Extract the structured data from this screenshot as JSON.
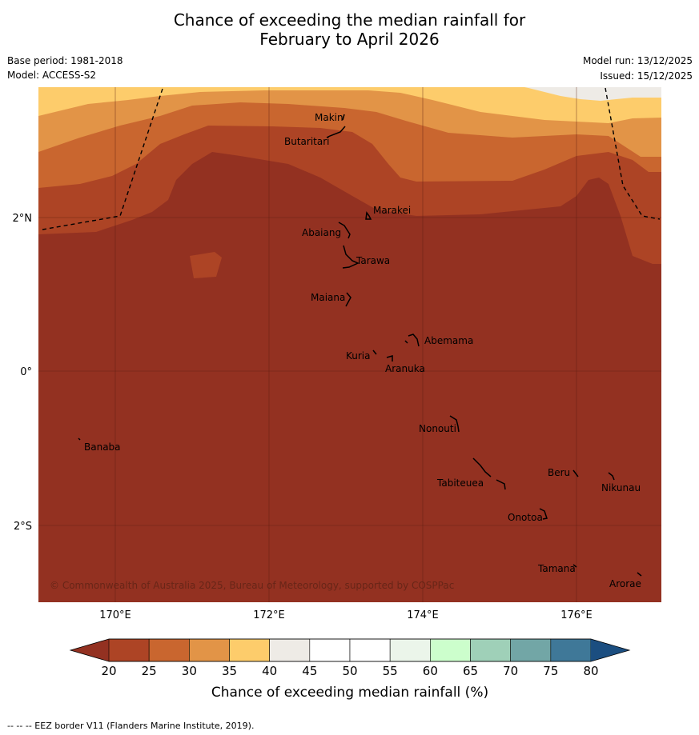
{
  "header": {
    "title_line1": "Chance of exceeding the median rainfall for",
    "title_line2": "February to April 2026",
    "base_period": "Base period: 1981-2018",
    "model": "Model: ACCESS-S2",
    "model_run": "Model run: 13/12/2025",
    "issued": "Issued: 15/12/2025"
  },
  "map": {
    "lat_labels": [
      "2°N",
      "0°",
      "2°S"
    ],
    "lon_labels": [
      "170°E",
      "172°E",
      "174°E",
      "176°E"
    ],
    "places": [
      {
        "name": "Makin",
        "id": "makin"
      },
      {
        "name": "Butaritari",
        "id": "butaritari"
      },
      {
        "name": "Marakei",
        "id": "marakei"
      },
      {
        "name": "Abaiang",
        "id": "abaiang"
      },
      {
        "name": "Tarawa",
        "id": "tarawa"
      },
      {
        "name": "Maiana",
        "id": "maiana"
      },
      {
        "name": "Abemama",
        "id": "abemama"
      },
      {
        "name": "Kuria",
        "id": "kuria"
      },
      {
        "name": "Aranuka",
        "id": "aranuka"
      },
      {
        "name": "Nonouti",
        "id": "nonouti"
      },
      {
        "name": "Banaba",
        "id": "banaba"
      },
      {
        "name": "Beru",
        "id": "beru"
      },
      {
        "name": "Nikunau",
        "id": "nikunau"
      },
      {
        "name": "Tabiteuea",
        "id": "tabiteuea"
      },
      {
        "name": "Onotoa",
        "id": "onotoa"
      },
      {
        "name": "Tamana",
        "id": "tamana"
      },
      {
        "name": "Arorae",
        "id": "arorae"
      }
    ],
    "copyright": "© Commonwealth of Australia 2025, Bureau of Meteorology, supported by COSPPac"
  },
  "legend": {
    "ticks": [
      "20",
      "25",
      "30",
      "35",
      "40",
      "45",
      "50",
      "55",
      "60",
      "65",
      "70",
      "75",
      "80"
    ],
    "colors": [
      "#ad4425",
      "#c9662f",
      "#e29447",
      "#fdcc6b",
      "#eeebe6",
      "#ffffff",
      "#ffffff",
      "#ebf5ea",
      "#ccfecc",
      "#9fd0b8",
      "#72a6a6",
      "#3f7898"
    ],
    "low_color": "#933121",
    "high_color": "#1b4e80",
    "label": "Chance of exceeding median rainfall (%)"
  },
  "footnote": "--  --  -- EEZ border V11 (Flanders Marine Institute, 2019)."
}
